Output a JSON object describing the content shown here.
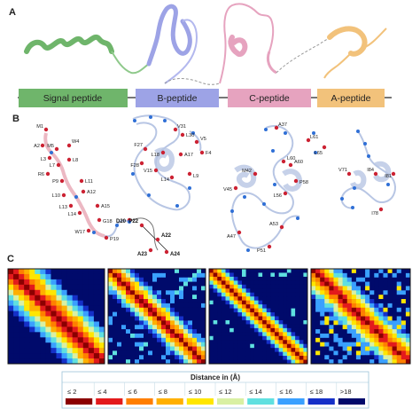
{
  "panels": {
    "a": "A",
    "b": "B",
    "c": "C"
  },
  "segments": [
    {
      "label": "Signal peptide",
      "color": "#6fb56b"
    },
    {
      "label": "B-peptide",
      "color": "#9da3e6"
    },
    {
      "label": "C-peptide",
      "color": "#e6a3bf"
    },
    {
      "label": "A-peptide",
      "color": "#f2c27b"
    }
  ],
  "residues_signal": [
    "M1",
    "A2",
    "L3",
    "M5",
    "W4",
    "R6",
    "L7",
    "L8",
    "P9",
    "L10",
    "L11",
    "A12",
    "L13",
    "L14",
    "A15",
    "G18",
    "W17",
    "P19"
  ],
  "residues_signal_bold": [
    "D20",
    "P22",
    "A22",
    "A23",
    "A24"
  ],
  "residues_b": [
    "V31",
    "L30",
    "F27",
    "F28",
    "L18",
    "A17",
    "V5",
    "F4",
    "L14",
    "V15",
    "L9"
  ],
  "residues_c": [
    "A37",
    "L60",
    "L61",
    "L65",
    "V45",
    "M42",
    "A60",
    "P58",
    "L56",
    "A47",
    "A53",
    "P51"
  ],
  "residues_a": [
    "V71",
    "I84",
    "I81",
    "I78"
  ],
  "legend": {
    "title": "Distance in (Å)",
    "items": [
      {
        "label": "≤ 2",
        "color": "#8b0000"
      },
      {
        "label": "≤ 4",
        "color": "#e31a1c"
      },
      {
        "label": "≤ 6",
        "color": "#ff7f00"
      },
      {
        "label": "≤ 8",
        "color": "#ffb000"
      },
      {
        "label": "≤ 10",
        "color": "#ffe600"
      },
      {
        "label": "≤ 12",
        "color": "#d9f0a3"
      },
      {
        "label": "≤ 14",
        "color": "#5fe0e0"
      },
      {
        "label": "≤ 16",
        "color": "#3aa0ff"
      },
      {
        "label": "≤ 18",
        "color": "#1530c8"
      },
      {
        "label": ">18",
        "color": "#000a6b"
      }
    ]
  }
}
